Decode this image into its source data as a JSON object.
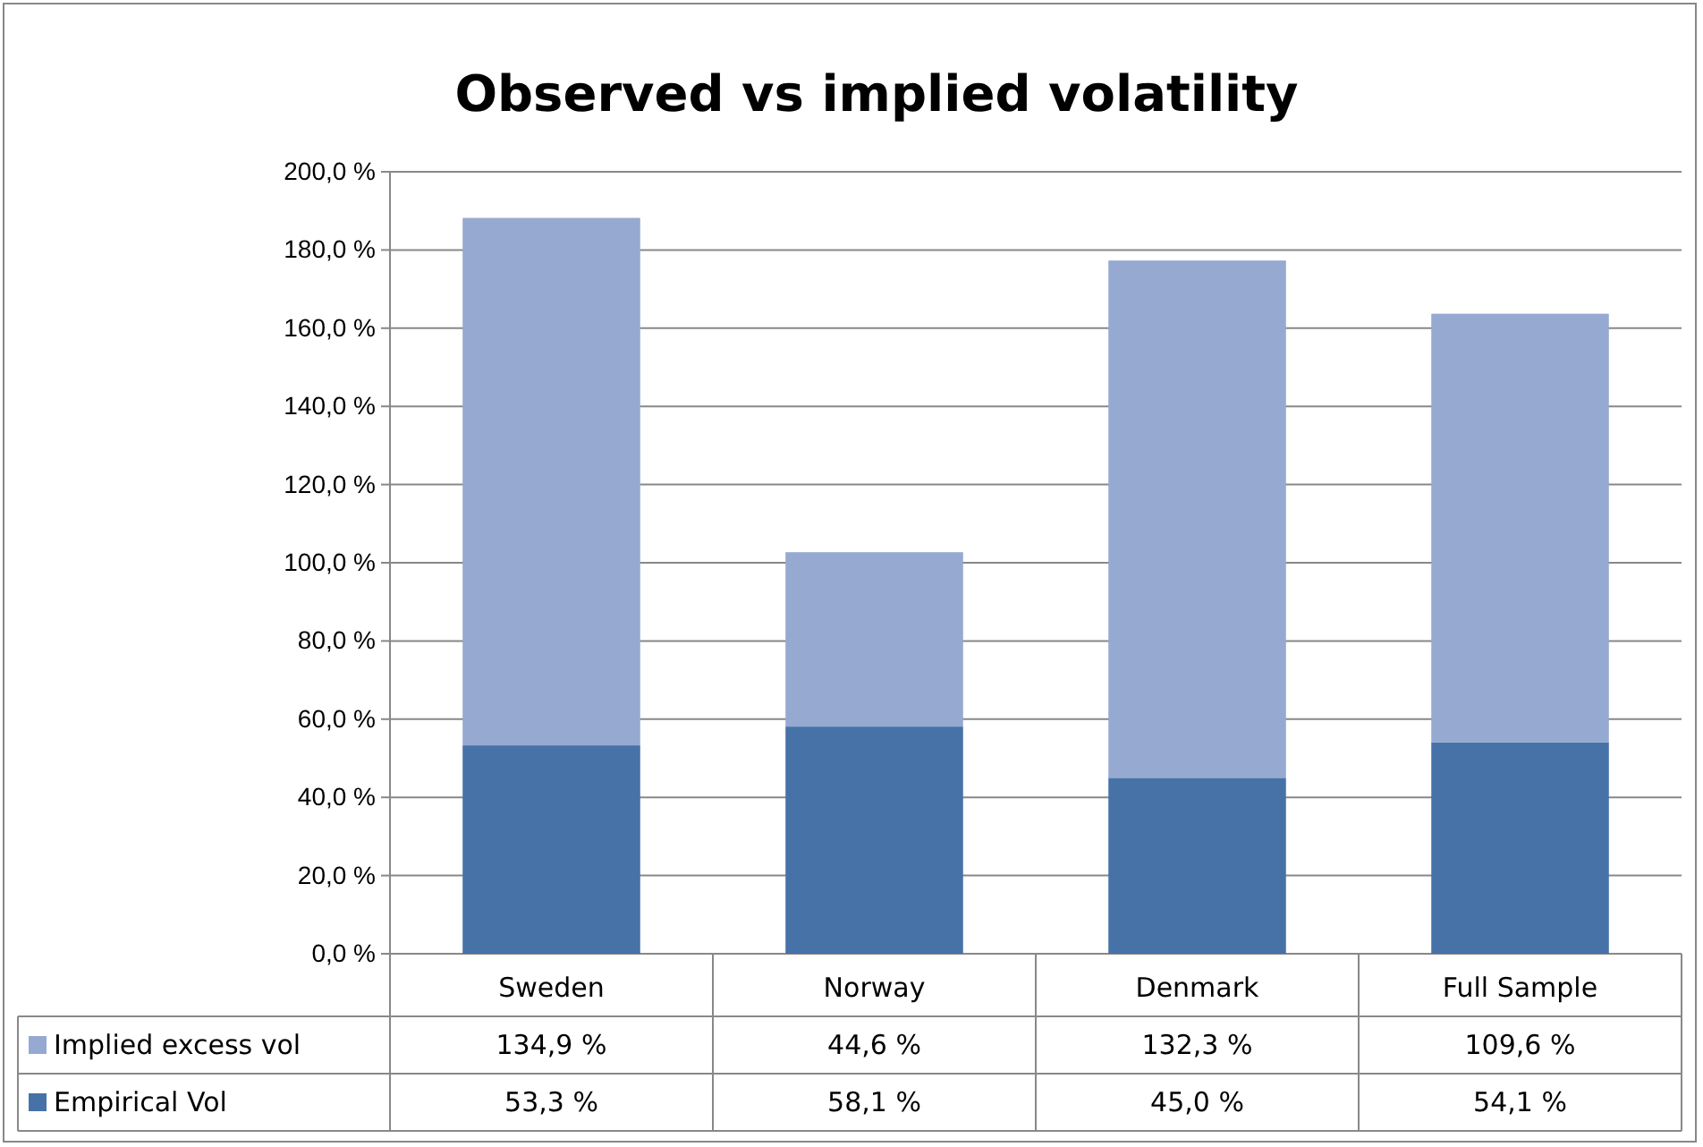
{
  "chart_data": {
    "type": "bar",
    "title": "Observed vs implied volatility",
    "categories": [
      "Sweden",
      "Norway",
      "Denmark",
      "Full Sample"
    ],
    "stacked": true,
    "grid": "y",
    "legend": "bottom",
    "ylim": [
      0,
      200
    ],
    "yticks": [
      {
        "value": 0,
        "label": "0,0 %"
      },
      {
        "value": 20,
        "label": "20,0 %"
      },
      {
        "value": 40,
        "label": "40,0 %"
      },
      {
        "value": 60,
        "label": "60,0 %"
      },
      {
        "value": 80,
        "label": "80,0 %"
      },
      {
        "value": 100,
        "label": "100,0 %"
      },
      {
        "value": 120,
        "label": "120,0 %"
      },
      {
        "value": 140,
        "label": "140,0 %"
      },
      {
        "value": 160,
        "label": "160,0 %"
      },
      {
        "value": 180,
        "label": "180,0 %"
      },
      {
        "value": 200,
        "label": "200,0 %"
      }
    ],
    "series": [
      {
        "name": "Empirical Vol",
        "color": "#4672a8",
        "values": [
          53.3,
          58.1,
          45.0,
          54.1
        ],
        "value_labels": [
          "53,3 %",
          "58,1 %",
          "45,0 %",
          "54,1 %"
        ]
      },
      {
        "name": "Implied excess vol",
        "color": "#95a9d1",
        "values": [
          134.9,
          44.6,
          132.3,
          109.6
        ],
        "value_labels": [
          "134,9 %",
          "44,6 %",
          "132,3 %",
          "109,6 %"
        ]
      }
    ]
  }
}
